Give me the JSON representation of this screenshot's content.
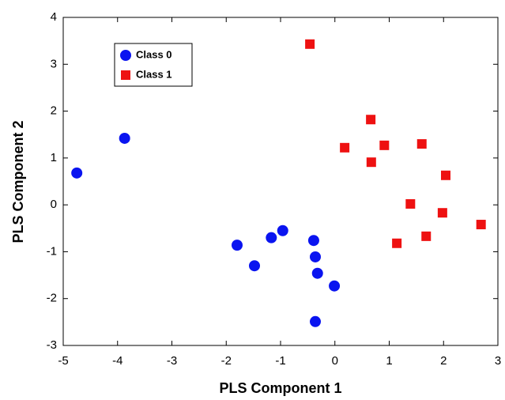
{
  "chart_data": {
    "type": "scatter",
    "xlabel": "PLS Component 1",
    "ylabel": "PLS Component 2",
    "xlim": [
      -5,
      3
    ],
    "ylim": [
      -3,
      4
    ],
    "xticks": [
      -5,
      -4,
      -3,
      -2,
      -1,
      0,
      1,
      2,
      3
    ],
    "yticks": [
      -3,
      -2,
      -1,
      0,
      1,
      2,
      3,
      4
    ],
    "legend": "upper left",
    "series": [
      {
        "name": "Class 0",
        "color": "#0a14f0",
        "marker": "circle",
        "x": [
          -4.75,
          -3.87,
          -1.8,
          -1.48,
          -1.17,
          -0.96,
          -0.39,
          -0.36,
          -0.32,
          -0.01,
          -0.36
        ],
        "values": [
          0.68,
          1.42,
          -0.86,
          -1.3,
          -0.7,
          -0.55,
          -0.76,
          -1.11,
          -1.46,
          -1.73,
          -2.49
        ]
      },
      {
        "name": "Class 1",
        "color": "#ee1111",
        "marker": "square",
        "x": [
          -0.46,
          0.18,
          0.66,
          0.67,
          0.91,
          1.6,
          1.39,
          1.14,
          1.68,
          1.98,
          2.04,
          2.69
        ],
        "values": [
          3.43,
          1.22,
          1.82,
          0.91,
          1.27,
          1.3,
          0.02,
          -0.82,
          -0.67,
          -0.17,
          0.63,
          -0.42
        ]
      }
    ]
  }
}
